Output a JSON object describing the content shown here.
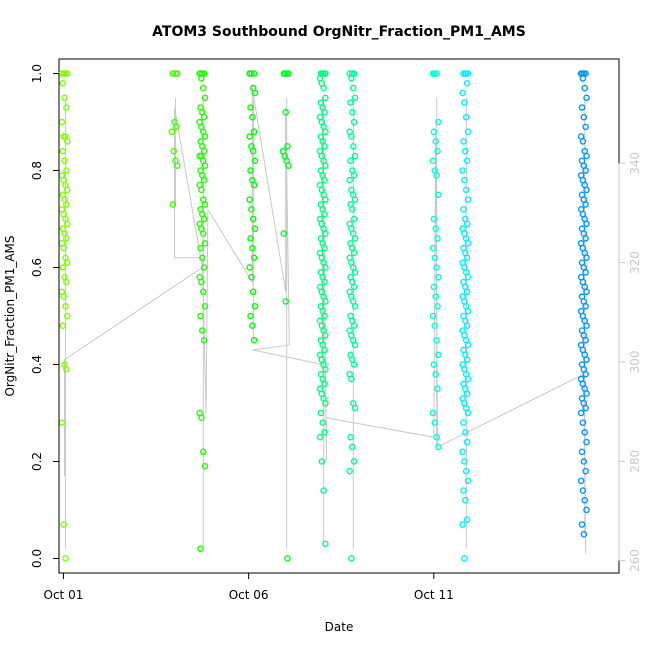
{
  "chart_data": {
    "type": "scatter",
    "title": "ATOM3 Southbound OrgNitr_Fraction_PM1_AMS",
    "xlabel": "Date",
    "ylabel": "OrgNitr_Fraction_PM1_AMS",
    "xlim_days": [
      0.88,
      16.0
    ],
    "ylim": [
      -0.03,
      1.03
    ],
    "y_ticks": [
      0.0,
      0.2,
      0.4,
      0.6,
      0.8,
      1.0
    ],
    "y_tick_labels": [
      "0.0",
      "0.2",
      "0.4",
      "0.6",
      "0.8",
      "1.0"
    ],
    "x_ticks_days": [
      1,
      6,
      11
    ],
    "x_tick_labels": [
      "Oct 01",
      "Oct 06",
      "Oct 11"
    ],
    "right_axis": {
      "label": "",
      "ticks": [
        260,
        280,
        300,
        320,
        340
      ],
      "tick_labels": [
        "260",
        "280",
        "300",
        "320",
        "340"
      ],
      "ylim": [
        257.5,
        361.0
      ],
      "color": "#c8c8c8"
    },
    "background_line_color": "#c8c8c8",
    "clusters": [
      {
        "day": 1.03,
        "color": "#80ff00",
        "points": [
          1.0,
          1.0,
          1.0,
          1.0,
          0.98,
          0.95,
          0.93,
          0.9,
          0.87,
          0.87,
          0.86,
          0.84,
          0.82,
          0.8,
          0.79,
          0.78,
          0.77,
          0.76,
          0.75,
          0.74,
          0.73,
          0.72,
          0.71,
          0.7,
          0.69,
          0.68,
          0.67,
          0.66,
          0.65,
          0.64,
          0.62,
          0.61,
          0.6,
          0.58,
          0.57,
          0.55,
          0.54,
          0.52,
          0.5,
          0.48,
          0.4,
          0.39,
          0.28,
          0.07,
          0.0
        ]
      },
      {
        "day": 4.0,
        "color": "#40ff00",
        "points": [
          1.0,
          1.0,
          1.0,
          0.9,
          0.89,
          0.88,
          0.84,
          0.82,
          0.81,
          0.73
        ]
      },
      {
        "day": 4.75,
        "color": "#20ff00",
        "points": [
          1.0,
          1.0,
          1.0,
          1.0,
          0.99,
          0.97,
          0.95,
          0.93,
          0.92,
          0.91,
          0.9,
          0.89,
          0.88,
          0.87,
          0.86,
          0.85,
          0.84,
          0.83,
          0.83,
          0.82,
          0.81,
          0.8,
          0.79,
          0.78,
          0.77,
          0.76,
          0.74,
          0.73,
          0.72,
          0.71,
          0.7,
          0.69,
          0.68,
          0.67,
          0.65,
          0.64,
          0.62,
          0.6,
          0.58,
          0.57,
          0.55,
          0.52,
          0.5,
          0.47,
          0.45,
          0.3,
          0.29,
          0.22,
          0.19,
          0.02
        ]
      },
      {
        "day": 6.1,
        "color": "#00ff00",
        "points": [
          1.0,
          1.0,
          1.0,
          0.97,
          0.96,
          0.93,
          0.91,
          0.88,
          0.87,
          0.85,
          0.84,
          0.82,
          0.8,
          0.78,
          0.77,
          0.74,
          0.72,
          0.7,
          0.68,
          0.66,
          0.64,
          0.62,
          0.6,
          0.58,
          0.55,
          0.52,
          0.5,
          0.48,
          0.45
        ]
      },
      {
        "day": 7.0,
        "color": "#00ff20",
        "points": [
          1.0,
          1.0,
          1.0,
          1.0,
          0.92,
          0.85,
          0.84,
          0.83,
          0.82,
          0.81,
          0.67,
          0.53,
          0.0
        ]
      },
      {
        "day": 8.0,
        "color": "#00ff80",
        "points": [
          1.0,
          1.0,
          1.0,
          1.0,
          0.99,
          0.98,
          0.97,
          0.95,
          0.94,
          0.93,
          0.92,
          0.91,
          0.9,
          0.89,
          0.88,
          0.87,
          0.86,
          0.85,
          0.84,
          0.83,
          0.82,
          0.81,
          0.8,
          0.79,
          0.78,
          0.77,
          0.76,
          0.75,
          0.74,
          0.73,
          0.72,
          0.71,
          0.7,
          0.69,
          0.68,
          0.67,
          0.66,
          0.65,
          0.64,
          0.63,
          0.62,
          0.61,
          0.6,
          0.59,
          0.58,
          0.57,
          0.56,
          0.55,
          0.54,
          0.53,
          0.52,
          0.51,
          0.5,
          0.49,
          0.48,
          0.47,
          0.46,
          0.45,
          0.44,
          0.43,
          0.42,
          0.41,
          0.4,
          0.39,
          0.38,
          0.37,
          0.36,
          0.35,
          0.34,
          0.33,
          0.32,
          0.3,
          0.28,
          0.26,
          0.25,
          0.2,
          0.14,
          0.03
        ]
      },
      {
        "day": 8.8,
        "color": "#00ff90",
        "points": [
          1.0,
          1.0,
          1.0,
          0.99,
          0.97,
          0.95,
          0.94,
          0.92,
          0.9,
          0.88,
          0.87,
          0.85,
          0.83,
          0.82,
          0.8,
          0.79,
          0.78,
          0.76,
          0.75,
          0.74,
          0.73,
          0.72,
          0.7,
          0.69,
          0.68,
          0.67,
          0.66,
          0.65,
          0.64,
          0.63,
          0.62,
          0.61,
          0.6,
          0.59,
          0.58,
          0.57,
          0.56,
          0.55,
          0.54,
          0.53,
          0.52,
          0.5,
          0.49,
          0.48,
          0.47,
          0.46,
          0.45,
          0.44,
          0.42,
          0.41,
          0.4,
          0.38,
          0.37,
          0.32,
          0.31,
          0.25,
          0.23,
          0.2,
          0.18,
          0.0
        ]
      },
      {
        "day": 11.05,
        "color": "#00ffe0",
        "points": [
          1.0,
          1.0,
          1.0,
          0.9,
          0.88,
          0.86,
          0.84,
          0.82,
          0.8,
          0.79,
          0.75,
          0.7,
          0.68,
          0.66,
          0.64,
          0.62,
          0.6,
          0.58,
          0.56,
          0.54,
          0.52,
          0.5,
          0.48,
          0.45,
          0.42,
          0.4,
          0.38,
          0.35,
          0.3,
          0.28,
          0.25,
          0.23
        ]
      },
      {
        "day": 11.85,
        "color": "#00f0ff",
        "points": [
          1.0,
          1.0,
          1.0,
          1.0,
          0.98,
          0.96,
          0.94,
          0.91,
          0.88,
          0.86,
          0.84,
          0.82,
          0.8,
          0.78,
          0.76,
          0.74,
          0.72,
          0.7,
          0.69,
          0.68,
          0.67,
          0.66,
          0.65,
          0.64,
          0.63,
          0.62,
          0.61,
          0.6,
          0.59,
          0.58,
          0.57,
          0.56,
          0.55,
          0.54,
          0.53,
          0.52,
          0.51,
          0.5,
          0.49,
          0.48,
          0.47,
          0.46,
          0.45,
          0.44,
          0.43,
          0.42,
          0.41,
          0.4,
          0.39,
          0.38,
          0.37,
          0.36,
          0.35,
          0.34,
          0.33,
          0.32,
          0.31,
          0.3,
          0.28,
          0.26,
          0.24,
          0.22,
          0.2,
          0.18,
          0.16,
          0.14,
          0.12,
          0.08,
          0.07,
          0.0
        ]
      },
      {
        "day": 15.05,
        "color": "#0096ff",
        "points": [
          1.0,
          1.0,
          1.0,
          1.0,
          0.99,
          0.97,
          0.95,
          0.93,
          0.91,
          0.89,
          0.87,
          0.86,
          0.84,
          0.83,
          0.82,
          0.81,
          0.8,
          0.79,
          0.78,
          0.77,
          0.76,
          0.75,
          0.74,
          0.73,
          0.72,
          0.71,
          0.7,
          0.69,
          0.68,
          0.67,
          0.66,
          0.65,
          0.64,
          0.63,
          0.62,
          0.61,
          0.6,
          0.59,
          0.58,
          0.57,
          0.56,
          0.55,
          0.54,
          0.53,
          0.52,
          0.51,
          0.5,
          0.49,
          0.48,
          0.47,
          0.46,
          0.45,
          0.44,
          0.43,
          0.42,
          0.41,
          0.4,
          0.39,
          0.38,
          0.37,
          0.36,
          0.35,
          0.34,
          0.33,
          0.32,
          0.31,
          0.3,
          0.28,
          0.26,
          0.24,
          0.22,
          0.2,
          0.18,
          0.16,
          0.14,
          0.12,
          0.1,
          0.07,
          0.05
        ]
      }
    ],
    "background_trace": [
      [
        1.03,
        0.17
      ],
      [
        1.03,
        0.41
      ],
      [
        4.75,
        0.6
      ],
      [
        4.0,
        0.93
      ],
      [
        4.0,
        0.62
      ],
      [
        4.75,
        0.62
      ],
      [
        4.85,
        0.3
      ],
      [
        4.9,
        0.72
      ],
      [
        6.1,
        0.57
      ],
      [
        6.1,
        0.97
      ],
      [
        7.0,
        0.55
      ],
      [
        7.0,
        0.93
      ],
      [
        7.1,
        0.44
      ],
      [
        6.1,
        0.43
      ],
      [
        8.0,
        0.4
      ],
      [
        8.0,
        0.95
      ],
      [
        8.1,
        0.2
      ],
      [
        8.1,
        0.29
      ],
      [
        11.0,
        0.25
      ],
      [
        11.05,
        0.88
      ],
      [
        11.1,
        0.23
      ],
      [
        15.05,
        0.38
      ],
      [
        15.1,
        0.01
      ]
    ]
  }
}
